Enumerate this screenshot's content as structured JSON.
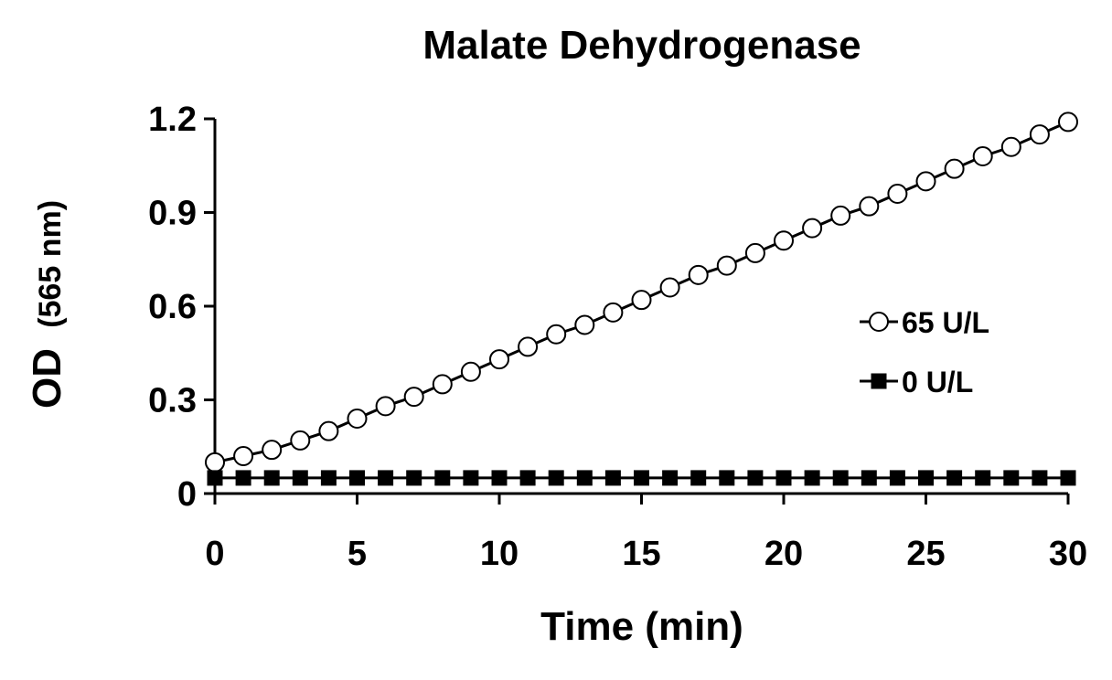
{
  "chart_data": {
    "type": "line",
    "title": "Malate Dehydrogenase",
    "xlabel": "Time (min)",
    "ylabel_main": "OD",
    "ylabel_sub": "(565 nm)",
    "xlim": [
      0,
      30
    ],
    "ylim": [
      0,
      1.2
    ],
    "xticks": [
      0,
      5,
      10,
      15,
      20,
      25,
      30
    ],
    "xtick_labels": [
      "0",
      "5",
      "10",
      "15",
      "20",
      "25",
      "30"
    ],
    "yticks": [
      0,
      0.3,
      0.6,
      0.9,
      1.2
    ],
    "ytick_labels": [
      "0",
      "0.3",
      "0.6",
      "0.9",
      "1.2"
    ],
    "grid": false,
    "legend_position": "right",
    "x": [
      0,
      1,
      2,
      3,
      4,
      5,
      6,
      7,
      8,
      9,
      10,
      11,
      12,
      13,
      14,
      15,
      16,
      17,
      18,
      19,
      20,
      21,
      22,
      23,
      24,
      25,
      26,
      27,
      28,
      29,
      30
    ],
    "series": [
      {
        "name": "65 U/L",
        "marker": "open-circle",
        "color": "#000000",
        "values": [
          0.1,
          0.12,
          0.14,
          0.17,
          0.2,
          0.24,
          0.28,
          0.31,
          0.35,
          0.39,
          0.43,
          0.47,
          0.51,
          0.54,
          0.58,
          0.62,
          0.66,
          0.7,
          0.73,
          0.77,
          0.81,
          0.85,
          0.89,
          0.92,
          0.96,
          1.0,
          1.04,
          1.08,
          1.11,
          1.15,
          1.19
        ]
      },
      {
        "name": "0 U/L",
        "marker": "filled-square",
        "color": "#000000",
        "values": [
          0.05,
          0.05,
          0.05,
          0.05,
          0.05,
          0.05,
          0.05,
          0.05,
          0.05,
          0.05,
          0.05,
          0.05,
          0.05,
          0.05,
          0.05,
          0.05,
          0.05,
          0.05,
          0.05,
          0.05,
          0.05,
          0.05,
          0.05,
          0.05,
          0.05,
          0.05,
          0.05,
          0.05,
          0.05,
          0.05,
          0.05
        ]
      }
    ]
  }
}
